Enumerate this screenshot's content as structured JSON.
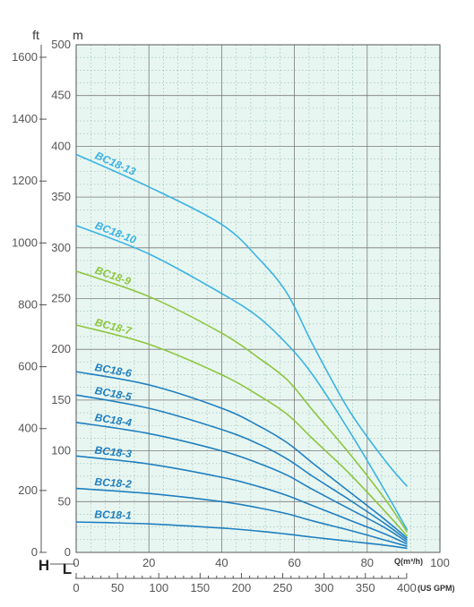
{
  "chart_data": {
    "type": "line",
    "x_unit_label": "Q(m³/h)",
    "x_ticks": [
      0,
      20,
      40,
      60,
      80,
      100
    ],
    "xlim": [
      0,
      100
    ],
    "y_unit_label_m": "m",
    "y_unit_label_ft": "ft",
    "y_ticks_m": [
      0,
      50,
      100,
      150,
      200,
      250,
      300,
      350,
      400,
      450,
      500
    ],
    "ylim": [
      0,
      500
    ],
    "y_ticks_ft": [
      0,
      200,
      400,
      600,
      800,
      1000,
      1200,
      1400,
      1600
    ],
    "letter_H": "H",
    "letter_L": "L",
    "gpm_ticks": [
      0,
      50,
      100,
      150,
      200,
      250,
      300,
      350,
      400
    ],
    "gpm_unit_label": "(US GPM)",
    "grid": true,
    "plot_bg": "#e8f6f1",
    "series": [
      {
        "name": "BC18-13",
        "color": "#3bb3e3",
        "x": [
          0,
          20,
          40,
          50,
          58,
          65,
          75,
          85,
          91
        ],
        "y": [
          392,
          360,
          323,
          290,
          255,
          205,
          140,
          90,
          65
        ]
      },
      {
        "name": "BC18-10",
        "color": "#3bb3e3",
        "x": [
          0,
          20,
          40,
          50,
          58,
          65,
          75,
          85,
          91
        ],
        "y": [
          322,
          294,
          255,
          232,
          205,
          175,
          120,
          60,
          22
        ]
      },
      {
        "name": "BC18-9",
        "color": "#8dc63f",
        "x": [
          0,
          20,
          40,
          50,
          58,
          65,
          75,
          85,
          91
        ],
        "y": [
          277,
          252,
          216,
          192,
          170,
          140,
          98,
          52,
          20
        ]
      },
      {
        "name": "BC18-7",
        "color": "#8dc63f",
        "x": [
          0,
          20,
          40,
          50,
          58,
          65,
          75,
          85,
          91
        ],
        "y": [
          224,
          205,
          175,
          155,
          136,
          112,
          78,
          40,
          16
        ]
      },
      {
        "name": "BC18-6",
        "color": "#1f7fc0",
        "x": [
          0,
          20,
          40,
          50,
          58,
          65,
          75,
          85,
          91
        ],
        "y": [
          178,
          165,
          142,
          125,
          108,
          88,
          60,
          32,
          14
        ]
      },
      {
        "name": "BC18-5",
        "color": "#1f7fc0",
        "x": [
          0,
          20,
          40,
          50,
          58,
          65,
          75,
          85,
          91
        ],
        "y": [
          155,
          142,
          121,
          107,
          92,
          75,
          52,
          28,
          12
        ]
      },
      {
        "name": "BC18-4",
        "color": "#1f7fc0",
        "x": [
          0,
          20,
          40,
          50,
          58,
          65,
          75,
          85,
          91
        ],
        "y": [
          128,
          117,
          100,
          88,
          76,
          62,
          43,
          24,
          10
        ]
      },
      {
        "name": "BC18-3",
        "color": "#1f7fc0",
        "x": [
          0,
          20,
          40,
          50,
          58,
          65,
          75,
          85,
          91
        ],
        "y": [
          95,
          87,
          74,
          65,
          56,
          46,
          32,
          18,
          8
        ]
      },
      {
        "name": "BC18-2",
        "color": "#1f7fc0",
        "x": [
          0,
          20,
          40,
          50,
          58,
          65,
          75,
          85,
          91
        ],
        "y": [
          63,
          58,
          50,
          44,
          38,
          31,
          22,
          12,
          6
        ]
      },
      {
        "name": "BC18-1",
        "color": "#1f7fc0",
        "x": [
          0,
          20,
          40,
          50,
          58,
          65,
          75,
          85,
          91
        ],
        "y": [
          30,
          28,
          24,
          21,
          18,
          15,
          11,
          7,
          4
        ]
      }
    ]
  }
}
